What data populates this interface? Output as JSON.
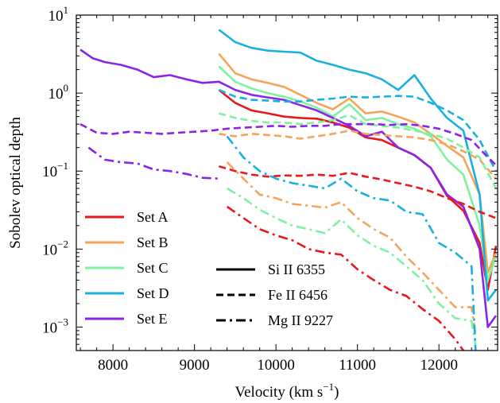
{
  "chart_data": {
    "type": "line",
    "xlabel": "Velocity (km s",
    "xlabel_exp": "−1",
    "xlabel_end": ")",
    "ylabel": "Sobolev optical depth",
    "xlim": [
      7550,
      12720
    ],
    "ylim": [
      0.0005,
      10
    ],
    "yscale": "log",
    "x_ticks": [
      8000,
      9000,
      10000,
      11000,
      12000
    ],
    "y_ticks": [
      {
        "value": 0.001,
        "base": "10",
        "exp": "−3"
      },
      {
        "value": 0.01,
        "base": "10",
        "exp": "−2"
      },
      {
        "value": 0.1,
        "base": "10",
        "exp": "−1"
      },
      {
        "value": 1,
        "base": "10",
        "exp": "0"
      },
      {
        "value": 10,
        "base": "10",
        "exp": "1"
      }
    ],
    "legend_sets": [
      {
        "name": "Set A",
        "color": "#e8191c"
      },
      {
        "name": "Set B",
        "color": "#f5a55a"
      },
      {
        "name": "Set C",
        "color": "#7ef2a0"
      },
      {
        "name": "Set D",
        "color": "#18b0e0"
      },
      {
        "name": "Set E",
        "color": "#8a24e8"
      }
    ],
    "legend_lines": [
      {
        "name": "Si II 6355",
        "dash": "solid"
      },
      {
        "name": "Fe II 6456",
        "dash": "dashed"
      },
      {
        "name": "Mg II 9227",
        "dash": "dashdot"
      }
    ],
    "legend_location": "lower left",
    "series": [
      {
        "set": "Set A",
        "line": "Si II 6355",
        "x": [
          9300,
          9500,
          9700,
          9900,
          10100,
          10300,
          10500,
          10700,
          10900,
          11100,
          11300,
          11500,
          11700,
          11900,
          12100,
          12300,
          12500,
          12600,
          12700
        ],
        "y": [
          1.1,
          0.75,
          0.6,
          0.55,
          0.5,
          0.48,
          0.47,
          0.42,
          0.36,
          0.27,
          0.25,
          0.2,
          0.16,
          0.11,
          0.048,
          0.031,
          0.012,
          0.003,
          0.011
        ]
      },
      {
        "set": "Set B",
        "line": "Si II 6355",
        "x": [
          9300,
          9500,
          9700,
          9900,
          10100,
          10300,
          10500,
          10700,
          10900,
          11100,
          11300,
          11500,
          11700,
          11900,
          12100,
          12300,
          12500,
          12600,
          12700
        ],
        "y": [
          3.2,
          1.8,
          1.5,
          1.35,
          1.2,
          0.95,
          0.75,
          0.62,
          0.85,
          0.55,
          0.58,
          0.5,
          0.42,
          0.3,
          0.21,
          0.15,
          0.05,
          0.005,
          0.009
        ]
      },
      {
        "set": "Set C",
        "line": "Si II 6355",
        "x": [
          9300,
          9500,
          9700,
          9900,
          10100,
          10300,
          10500,
          10700,
          10900,
          11100,
          11300,
          11500,
          11700,
          11900,
          12100,
          12300,
          12500,
          12600,
          12700
        ],
        "y": [
          2.2,
          1.4,
          1.15,
          1.0,
          0.9,
          0.78,
          0.65,
          0.5,
          0.72,
          0.45,
          0.48,
          0.4,
          0.35,
          0.28,
          0.14,
          0.09,
          0.02,
          0.004,
          0.008
        ]
      },
      {
        "set": "Set D",
        "line": "Si II 6355",
        "x": [
          9300,
          9500,
          9700,
          9900,
          10100,
          10300,
          10500,
          10700,
          10900,
          11100,
          11300,
          11500,
          11700,
          11900,
          12100,
          12300,
          12500,
          12600,
          12700
        ],
        "y": [
          6.5,
          4.5,
          3.8,
          3.5,
          3.4,
          3.3,
          2.6,
          2.3,
          2.0,
          1.8,
          1.5,
          1.1,
          1.7,
          0.85,
          0.48,
          0.33,
          0.05,
          0.0022,
          0.003
        ]
      },
      {
        "set": "Set E",
        "line": "Si II 6355",
        "x": [
          7600,
          7750,
          7900,
          8100,
          8300,
          8500,
          8700,
          8900,
          9100,
          9300,
          9500,
          9700,
          9900,
          10100,
          10300,
          10500,
          10700,
          10900,
          11100,
          11300,
          11500,
          11700,
          11900,
          12100,
          12300,
          12500,
          12600,
          12700
        ],
        "y": [
          3.6,
          2.8,
          2.5,
          2.3,
          2.0,
          1.6,
          1.7,
          1.5,
          1.35,
          1.4,
          1.1,
          0.95,
          0.88,
          0.82,
          0.7,
          0.6,
          0.48,
          0.38,
          0.28,
          0.32,
          0.2,
          0.16,
          0.11,
          0.05,
          0.035,
          0.01,
          0.001,
          0.0014
        ]
      },
      {
        "set": "Set A",
        "line": "Fe II 6456",
        "x": [
          9300,
          9500,
          9700,
          9900,
          10100,
          10300,
          10500,
          10700,
          10900,
          11100,
          11300,
          11500,
          11700,
          11900,
          12100,
          12300,
          12500,
          12700
        ],
        "y": [
          0.115,
          0.1,
          0.09,
          0.085,
          0.088,
          0.087,
          0.09,
          0.087,
          0.095,
          0.085,
          0.078,
          0.07,
          0.063,
          0.055,
          0.045,
          0.038,
          0.03,
          0.025
        ]
      },
      {
        "set": "Set B",
        "line": "Fe II 6456",
        "x": [
          9300,
          9500,
          9700,
          9900,
          10100,
          10300,
          10500,
          10700,
          10900,
          11100,
          11300,
          11500,
          11700,
          11900,
          12100,
          12300,
          12500,
          12700
        ],
        "y": [
          0.3,
          0.28,
          0.3,
          0.29,
          0.28,
          0.26,
          0.28,
          0.3,
          0.33,
          0.3,
          0.29,
          0.28,
          0.27,
          0.25,
          0.22,
          0.18,
          0.14,
          0.08
        ]
      },
      {
        "set": "Set C",
        "line": "Fe II 6456",
        "x": [
          9300,
          9500,
          9700,
          9900,
          10100,
          10300,
          10500,
          10700,
          10900,
          11100,
          11300,
          11500,
          11700,
          11900,
          12100,
          12300,
          12500,
          12700
        ],
        "y": [
          0.55,
          0.48,
          0.44,
          0.42,
          0.42,
          0.4,
          0.42,
          0.45,
          0.52,
          0.4,
          0.38,
          0.36,
          0.33,
          0.3,
          0.26,
          0.2,
          0.15,
          0.06
        ]
      },
      {
        "set": "Set D",
        "line": "Fe II 6456",
        "x": [
          9300,
          9500,
          9700,
          9900,
          10100,
          10300,
          10500,
          10700,
          10900,
          11100,
          11300,
          11500,
          11700,
          11900,
          12100,
          12300,
          12500,
          12700
        ],
        "y": [
          1.1,
          0.9,
          0.82,
          0.8,
          0.78,
          0.78,
          0.82,
          0.85,
          0.9,
          0.88,
          0.9,
          0.92,
          0.9,
          0.75,
          0.6,
          0.45,
          0.25,
          0.1
        ]
      },
      {
        "set": "Set E",
        "line": "Fe II 6456",
        "x": [
          7600,
          7800,
          8000,
          8200,
          8400,
          8600,
          8800,
          9000,
          9200,
          9400,
          9600,
          9800,
          10000,
          10200,
          10400,
          10600,
          10800,
          11000,
          11200,
          11400,
          11600,
          11800,
          12000,
          12200,
          12400,
          12600,
          12700
        ],
        "y": [
          0.4,
          0.31,
          0.3,
          0.32,
          0.31,
          0.3,
          0.31,
          0.32,
          0.33,
          0.35,
          0.36,
          0.37,
          0.38,
          0.37,
          0.38,
          0.38,
          0.4,
          0.4,
          0.4,
          0.39,
          0.4,
          0.38,
          0.35,
          0.3,
          0.25,
          0.15,
          0.12
        ]
      },
      {
        "set": "Set A",
        "line": "Mg II 9227",
        "x": [
          9400,
          9600,
          9800,
          10000,
          10200,
          10400,
          10600,
          10800,
          11000,
          11200,
          11400,
          11600,
          11800,
          12000,
          12200,
          12300
        ],
        "y": [
          0.035,
          0.025,
          0.018,
          0.015,
          0.013,
          0.01,
          0.009,
          0.0085,
          0.0055,
          0.004,
          0.003,
          0.0025,
          0.0017,
          0.0012,
          0.0007,
          0.0005
        ]
      },
      {
        "set": "Set B",
        "line": "Mg II 9227",
        "x": [
          9400,
          9600,
          9800,
          10000,
          10200,
          10400,
          10600,
          10800,
          11000,
          11200,
          11400,
          11600,
          11800,
          12000,
          12200,
          12400,
          12450
        ],
        "y": [
          0.13,
          0.08,
          0.05,
          0.045,
          0.038,
          0.036,
          0.034,
          0.04,
          0.025,
          0.018,
          0.014,
          0.008,
          0.005,
          0.003,
          0.0018,
          0.0018,
          0.0008
        ]
      },
      {
        "set": "Set C",
        "line": "Mg II 9227",
        "x": [
          9400,
          9600,
          9800,
          10000,
          10200,
          10400,
          10600,
          10800,
          11000,
          11200,
          11400,
          11600,
          11800,
          12000,
          12200,
          12400,
          12450
        ],
        "y": [
          0.06,
          0.045,
          0.032,
          0.025,
          0.02,
          0.018,
          0.016,
          0.024,
          0.015,
          0.011,
          0.009,
          0.006,
          0.004,
          0.002,
          0.0013,
          0.0012,
          0.0006
        ]
      },
      {
        "set": "Set D",
        "line": "Mg II 9227",
        "x": [
          9400,
          9600,
          9800,
          10000,
          10200,
          10400,
          10600,
          10800,
          11000,
          11200,
          11400,
          11600,
          11800,
          12000,
          12200,
          12400,
          12450
        ],
        "y": [
          0.28,
          0.15,
          0.1,
          0.08,
          0.07,
          0.065,
          0.06,
          0.08,
          0.055,
          0.045,
          0.042,
          0.03,
          0.028,
          0.012,
          0.009,
          0.006,
          0.0005
        ]
      },
      {
        "set": "Set E",
        "line": "Mg II 9227",
        "x": [
          7700,
          7900,
          8100,
          8300,
          8500,
          8700,
          8900,
          9100,
          9300
        ],
        "y": [
          0.2,
          0.14,
          0.13,
          0.125,
          0.105,
          0.1,
          0.092,
          0.082,
          0.08
        ]
      }
    ]
  }
}
